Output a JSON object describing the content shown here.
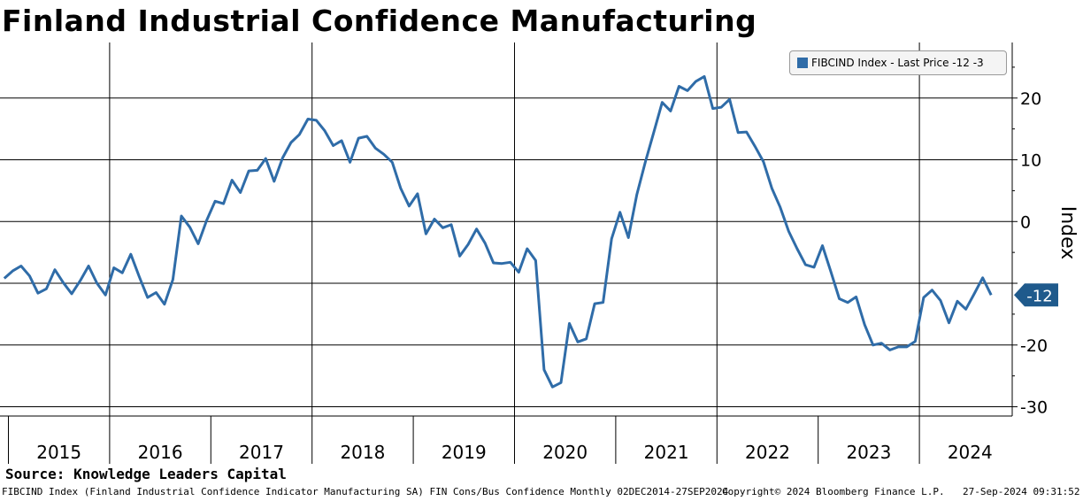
{
  "title": "Finland Industrial Confidence Manufacturing",
  "source": "Source: Knowledge Leaders Capital",
  "footer": {
    "description": "FIBCIND Index (Finland Industrial Confidence Indicator Manufacturing SA) FIN Cons/Bus Confidence  Monthly 02DEC2014-27SEP2024",
    "copyright": "Copyright© 2024 Bloomberg Finance L.P.",
    "timestamp": "27-Sep-2024 09:31:52"
  },
  "colors": {
    "series": "#2f6ca8",
    "grid": "#000000",
    "background": "#ffffff"
  },
  "chart_data": {
    "type": "line",
    "title": "Finland Industrial Confidence Manufacturing",
    "ylabel": "Index",
    "xlabel": "",
    "ylim": [
      -31.5,
      29
    ],
    "yticks": [
      -30,
      -20,
      -10,
      0,
      10,
      20
    ],
    "ytick_labels": [
      "-30",
      "-20",
      "",
      "0",
      "10",
      "20"
    ],
    "years": [
      "2015",
      "2016",
      "2017",
      "2018",
      "2019",
      "2020",
      "2021",
      "2022",
      "2023",
      "2024"
    ],
    "x_start": 2014.917,
    "x_end": 2024.917,
    "last_value_label": "-12",
    "legend": {
      "label": "FIBCIND Index - Last Price -12  -3",
      "position": "top-right"
    },
    "series": [
      {
        "name": "FIBCIND Index - Last Price",
        "start": "2014-12",
        "frequency": "monthly",
        "values": [
          -9.2,
          -8,
          -7.2,
          -8.8,
          -11.6,
          -10.9,
          -7.8,
          -9.9,
          -11.7,
          -9.6,
          -7.2,
          -10,
          -11.9,
          -7.5,
          -8.3,
          -5.3,
          -8.9,
          -12.3,
          -11.5,
          -13.4,
          -9.4,
          0.9,
          -0.9,
          -3.6,
          0.2,
          3.3,
          2.9,
          6.7,
          4.7,
          8.2,
          8.3,
          10.2,
          6.5,
          10.3,
          12.8,
          14.1,
          16.6,
          16.4,
          14.7,
          12.3,
          13.1,
          9.6,
          13.5,
          13.8,
          11.9,
          10.9,
          9.6,
          5.4,
          2.5,
          4.5,
          -2,
          0.4,
          -1,
          -0.5,
          -5.6,
          -3.7,
          -1.2,
          -3.5,
          -6.7,
          -6.8,
          -6.6,
          -8.2,
          -4.4,
          -6.3,
          -24,
          -26.8,
          -26.1,
          -16.5,
          -19.5,
          -19,
          -13.3,
          -13.1,
          -2.8,
          1.5,
          -2.6,
          4.4,
          9.6,
          14.4,
          19.3,
          17.9,
          21.9,
          21.2,
          22.7,
          23.5,
          18.3,
          18.5,
          19.8,
          14.4,
          14.5,
          12.2,
          9.7,
          5.4,
          2.3,
          -1.6,
          -4.4,
          -7,
          -7.4,
          -3.9,
          -8.1,
          -12.5,
          -13.1,
          -12.2,
          -16.7,
          -20,
          -19.7,
          -20.8,
          -20.3,
          -20.3,
          -19.4,
          -12.3,
          -11.1,
          -12.8,
          -16.4,
          -12.9,
          -14.2,
          -11.7,
          -9.1,
          -11.9
        ]
      }
    ]
  }
}
